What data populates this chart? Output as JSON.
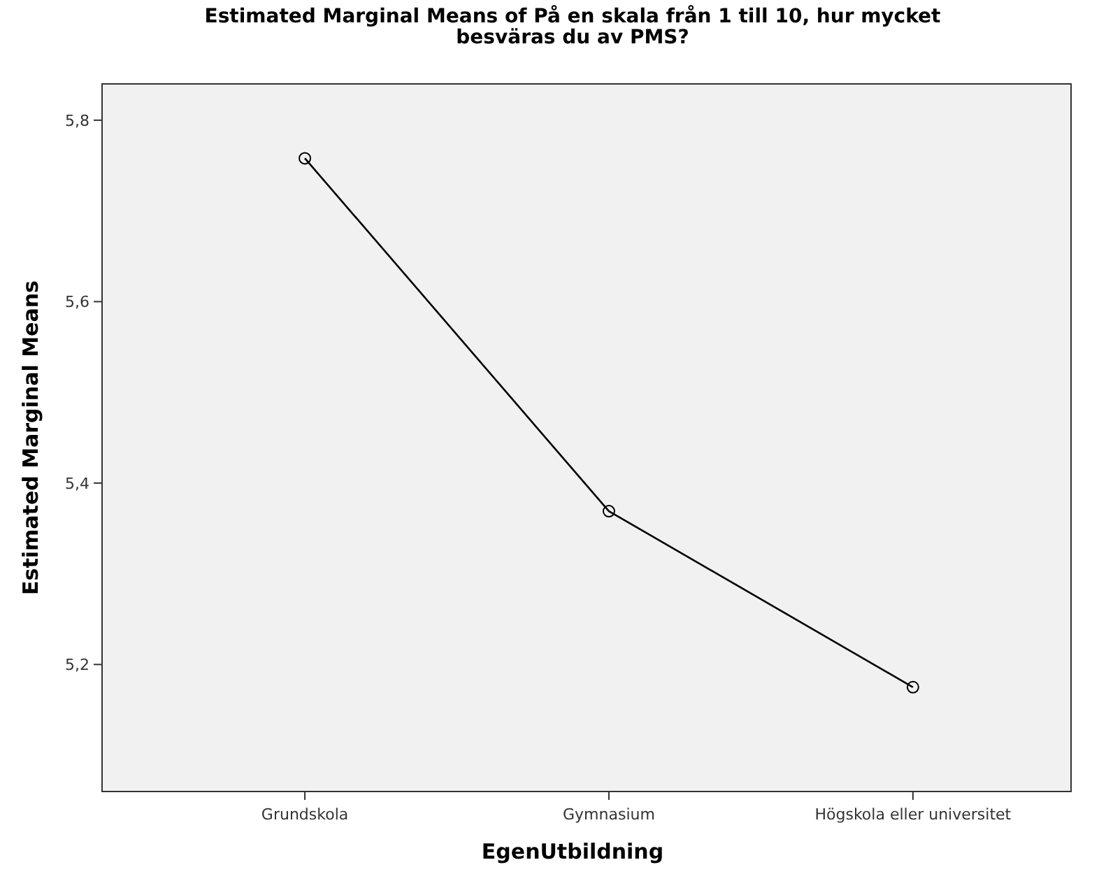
{
  "chart_data": {
    "type": "line",
    "title": "Estimated Marginal Means of På en skala från 1 till 10, hur mycket besväras du av PMS?",
    "xlabel": "EgenUtbildning",
    "ylabel": "Estimated Marginal Means",
    "categories": [
      "Grundskola",
      "Gymnasium",
      "Högskola eller universitet"
    ],
    "series": [
      {
        "color": "#000000",
        "values": [
          5.758,
          5.369,
          5.175
        ]
      }
    ],
    "ylim": [
      5.06,
      5.84
    ],
    "yticks": [
      {
        "value": 5.2,
        "label": "5,2"
      },
      {
        "value": 5.4,
        "label": "5,4"
      },
      {
        "value": 5.6,
        "label": "5,6"
      },
      {
        "value": 5.8,
        "label": "5,8"
      }
    ],
    "marker": "circle",
    "grid": false
  }
}
